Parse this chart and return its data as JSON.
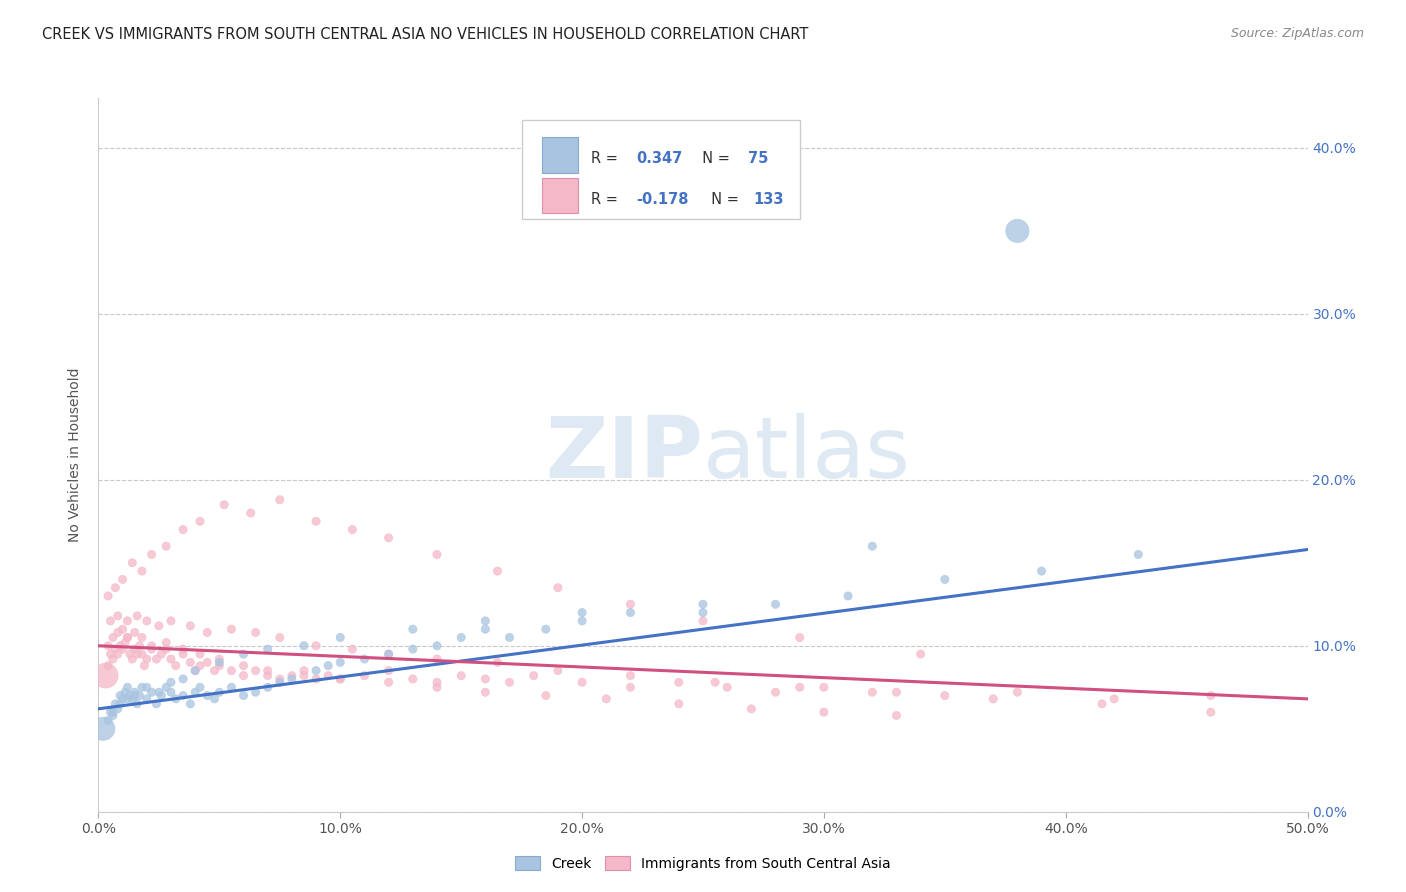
{
  "title": "CREEK VS IMMIGRANTS FROM SOUTH CENTRAL ASIA NO VEHICLES IN HOUSEHOLD CORRELATION CHART",
  "source": "Source: ZipAtlas.com",
  "ylabel": "No Vehicles in Household",
  "xlim": [
    0.0,
    0.5
  ],
  "ylim": [
    0.0,
    0.43
  ],
  "blue_color": "#a8c4e0",
  "pink_color": "#f4b8c8",
  "blue_line_color": "#4472c4",
  "pink_line_color": "#d05080",
  "watermark_color": "#daeaf5",
  "legend_text_color": "#4472c4",
  "creek_trendline_y": [
    0.062,
    0.158
  ],
  "creek_trendline_x": [
    0.0,
    0.5
  ],
  "pink_trendline_y": [
    0.1,
    0.068
  ],
  "pink_trendline_x": [
    0.0,
    0.5
  ],
  "creek_x": [
    0.002,
    0.004,
    0.005,
    0.006,
    0.007,
    0.008,
    0.009,
    0.01,
    0.011,
    0.012,
    0.013,
    0.014,
    0.015,
    0.016,
    0.017,
    0.018,
    0.02,
    0.022,
    0.024,
    0.026,
    0.028,
    0.03,
    0.032,
    0.035,
    0.038,
    0.04,
    0.042,
    0.045,
    0.048,
    0.05,
    0.055,
    0.06,
    0.065,
    0.07,
    0.075,
    0.08,
    0.09,
    0.095,
    0.1,
    0.11,
    0.12,
    0.13,
    0.14,
    0.15,
    0.16,
    0.17,
    0.185,
    0.2,
    0.22,
    0.25,
    0.28,
    0.31,
    0.35,
    0.39,
    0.43,
    0.006,
    0.009,
    0.012,
    0.015,
    0.02,
    0.025,
    0.03,
    0.035,
    0.04,
    0.05,
    0.06,
    0.07,
    0.085,
    0.1,
    0.13,
    0.16,
    0.2,
    0.25,
    0.32,
    0.38
  ],
  "creek_y": [
    0.05,
    0.055,
    0.06,
    0.058,
    0.065,
    0.062,
    0.07,
    0.068,
    0.072,
    0.075,
    0.07,
    0.068,
    0.072,
    0.065,
    0.07,
    0.075,
    0.068,
    0.072,
    0.065,
    0.07,
    0.075,
    0.072,
    0.068,
    0.07,
    0.065,
    0.072,
    0.075,
    0.07,
    0.068,
    0.072,
    0.075,
    0.07,
    0.072,
    0.075,
    0.078,
    0.08,
    0.085,
    0.088,
    0.09,
    0.092,
    0.095,
    0.098,
    0.1,
    0.105,
    0.11,
    0.105,
    0.11,
    0.115,
    0.12,
    0.12,
    0.125,
    0.13,
    0.14,
    0.145,
    0.155,
    0.06,
    0.065,
    0.068,
    0.07,
    0.075,
    0.072,
    0.078,
    0.08,
    0.085,
    0.09,
    0.095,
    0.098,
    0.1,
    0.105,
    0.11,
    0.115,
    0.12,
    0.125,
    0.16,
    0.35
  ],
  "creek_sizes": [
    40,
    35,
    35,
    35,
    35,
    35,
    35,
    35,
    35,
    35,
    35,
    35,
    35,
    35,
    35,
    35,
    35,
    35,
    35,
    35,
    35,
    35,
    35,
    35,
    35,
    35,
    35,
    35,
    35,
    35,
    35,
    35,
    35,
    35,
    35,
    35,
    35,
    35,
    35,
    35,
    35,
    35,
    35,
    35,
    35,
    35,
    35,
    35,
    35,
    35,
    35,
    35,
    35,
    35,
    35,
    35,
    35,
    35,
    35,
    35,
    35,
    35,
    35,
    35,
    35,
    35,
    35,
    35,
    35,
    35,
    35,
    35,
    35,
    35,
    280
  ],
  "creek_one_large": true,
  "pink_x": [
    0.003,
    0.004,
    0.005,
    0.006,
    0.007,
    0.008,
    0.009,
    0.01,
    0.011,
    0.012,
    0.013,
    0.014,
    0.015,
    0.016,
    0.017,
    0.018,
    0.019,
    0.02,
    0.022,
    0.024,
    0.026,
    0.028,
    0.03,
    0.032,
    0.035,
    0.038,
    0.04,
    0.042,
    0.045,
    0.048,
    0.05,
    0.055,
    0.06,
    0.065,
    0.07,
    0.075,
    0.08,
    0.085,
    0.09,
    0.095,
    0.1,
    0.11,
    0.12,
    0.13,
    0.14,
    0.15,
    0.16,
    0.17,
    0.18,
    0.2,
    0.22,
    0.24,
    0.26,
    0.28,
    0.3,
    0.32,
    0.35,
    0.38,
    0.42,
    0.46,
    0.004,
    0.006,
    0.008,
    0.01,
    0.012,
    0.015,
    0.018,
    0.022,
    0.028,
    0.035,
    0.042,
    0.05,
    0.06,
    0.07,
    0.085,
    0.1,
    0.12,
    0.14,
    0.16,
    0.185,
    0.21,
    0.24,
    0.27,
    0.3,
    0.33,
    0.005,
    0.008,
    0.012,
    0.016,
    0.02,
    0.025,
    0.03,
    0.038,
    0.045,
    0.055,
    0.065,
    0.075,
    0.09,
    0.105,
    0.12,
    0.14,
    0.165,
    0.19,
    0.22,
    0.255,
    0.29,
    0.33,
    0.37,
    0.415,
    0.46,
    0.004,
    0.007,
    0.01,
    0.014,
    0.018,
    0.022,
    0.028,
    0.035,
    0.042,
    0.052,
    0.063,
    0.075,
    0.09,
    0.105,
    0.12,
    0.14,
    0.165,
    0.19,
    0.22,
    0.25,
    0.29,
    0.34
  ],
  "pink_y": [
    0.082,
    0.088,
    0.095,
    0.092,
    0.098,
    0.095,
    0.1,
    0.098,
    0.102,
    0.105,
    0.095,
    0.092,
    0.098,
    0.095,
    0.1,
    0.095,
    0.088,
    0.092,
    0.098,
    0.092,
    0.095,
    0.098,
    0.092,
    0.088,
    0.095,
    0.09,
    0.085,
    0.088,
    0.09,
    0.085,
    0.088,
    0.085,
    0.082,
    0.085,
    0.082,
    0.08,
    0.082,
    0.085,
    0.08,
    0.082,
    0.08,
    0.082,
    0.085,
    0.08,
    0.078,
    0.082,
    0.08,
    0.078,
    0.082,
    0.078,
    0.075,
    0.078,
    0.075,
    0.072,
    0.075,
    0.072,
    0.07,
    0.072,
    0.068,
    0.07,
    0.1,
    0.105,
    0.108,
    0.11,
    0.105,
    0.108,
    0.105,
    0.1,
    0.102,
    0.098,
    0.095,
    0.092,
    0.088,
    0.085,
    0.082,
    0.08,
    0.078,
    0.075,
    0.072,
    0.07,
    0.068,
    0.065,
    0.062,
    0.06,
    0.058,
    0.115,
    0.118,
    0.115,
    0.118,
    0.115,
    0.112,
    0.115,
    0.112,
    0.108,
    0.11,
    0.108,
    0.105,
    0.1,
    0.098,
    0.095,
    0.092,
    0.09,
    0.085,
    0.082,
    0.078,
    0.075,
    0.072,
    0.068,
    0.065,
    0.06,
    0.13,
    0.135,
    0.14,
    0.15,
    0.145,
    0.155,
    0.16,
    0.17,
    0.175,
    0.185,
    0.18,
    0.188,
    0.175,
    0.17,
    0.165,
    0.155,
    0.145,
    0.135,
    0.125,
    0.115,
    0.105,
    0.095
  ],
  "pink_sizes": [
    35,
    35,
    35,
    35,
    35,
    35,
    35,
    35,
    35,
    35,
    35,
    35,
    35,
    35,
    35,
    35,
    35,
    35,
    35,
    35,
    35,
    35,
    35,
    35,
    35,
    35,
    35,
    35,
    35,
    35,
    35,
    35,
    35,
    35,
    35,
    35,
    35,
    35,
    35,
    35,
    35,
    35,
    35,
    35,
    35,
    35,
    35,
    35,
    35,
    35,
    35,
    35,
    35,
    35,
    35,
    35,
    35,
    35,
    35,
    35,
    35,
    35,
    35,
    35,
    35,
    35,
    35,
    35,
    35,
    35,
    35,
    35,
    35,
    35,
    35,
    35,
    35,
    35,
    35,
    35,
    35,
    35,
    35,
    35,
    35,
    35,
    35,
    35,
    35,
    35,
    35,
    35,
    35,
    35,
    35,
    35,
    35,
    35,
    35,
    35,
    35,
    35,
    35,
    35,
    35,
    35,
    35,
    35,
    35,
    35,
    35,
    35,
    35,
    35,
    35,
    35,
    35,
    35,
    35,
    35,
    35,
    35,
    35,
    35,
    35,
    35,
    35,
    35,
    35,
    35,
    35,
    35
  ],
  "pink_one_large": true
}
